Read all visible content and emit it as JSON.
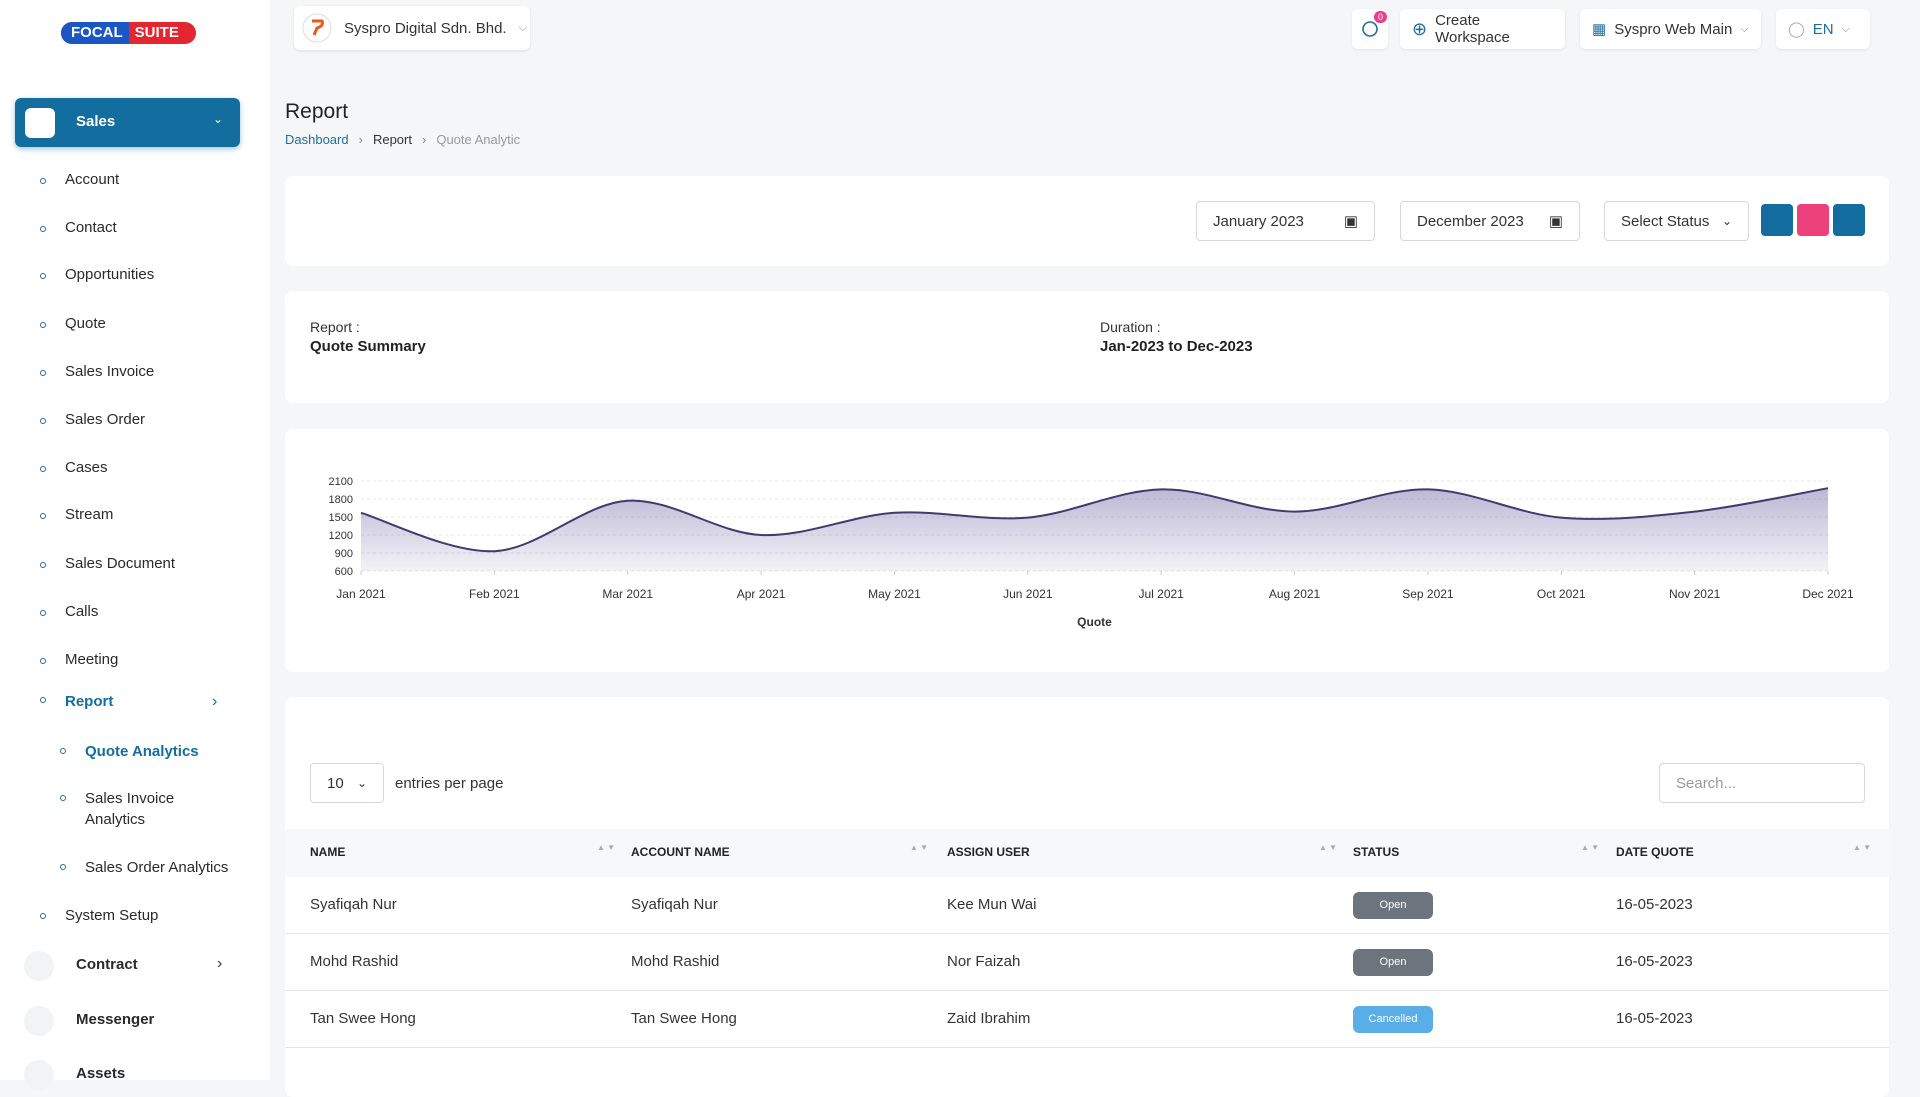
{
  "logo": {
    "left": "FOCAL",
    "right": "SUITE"
  },
  "header": {
    "company": "Syspro Digital Sdn. Bhd.",
    "notifications": "0",
    "create_workspace": "Create Workspace",
    "workspace": "Syspro Web Main",
    "language": "EN"
  },
  "sidebar": {
    "section": "Sales",
    "items": [
      "Account",
      "Contact",
      "Opportunities",
      "Quote",
      "Sales Invoice",
      "Sales Order",
      "Cases",
      "Stream",
      "Sales Document",
      "Calls",
      "Meeting"
    ],
    "report": "Report",
    "report_items": [
      "Quote Analytics",
      "Sales Invoice Analytics",
      "Sales Order Analytics"
    ],
    "system_setup": "System Setup",
    "modules": [
      "Contract",
      "Messenger",
      "Assets"
    ]
  },
  "page": {
    "title": "Report",
    "breadcrumb": [
      "Dashboard",
      "Report",
      "Quote Analytic"
    ]
  },
  "filters": {
    "from": "January 2023",
    "to": "December 2023",
    "status": "Select Status"
  },
  "summary": {
    "report_label": "Report :",
    "report_value": "Quote Summary",
    "duration_label": "Duration :",
    "duration_value": "Jan-2023 to Dec-2023"
  },
  "chart_data": {
    "type": "area",
    "x_label": "Quote",
    "categories": [
      "Jan 2021",
      "Feb 2021",
      "Mar 2021",
      "Apr 2021",
      "May 2021",
      "Jun 2021",
      "Jul 2021",
      "Aug 2021",
      "Sep 2021",
      "Oct 2021",
      "Nov 2021",
      "Dec 2021"
    ],
    "values": [
      1570,
      930,
      1770,
      1200,
      1570,
      1490,
      1960,
      1590,
      1960,
      1490,
      1590,
      1980
    ],
    "color": "#3f3b6e",
    "ylim": [
      600,
      2100
    ],
    "yticks": [
      600,
      900,
      1200,
      1500,
      1800,
      2100
    ],
    "grid": true
  },
  "table": {
    "page_size": "10",
    "entries_label": "entries per page",
    "search_placeholder": "Search...",
    "columns": [
      "NAME",
      "ACCOUNT NAME",
      "ASSIGN USER",
      "STATUS",
      "DATE QUOTE"
    ],
    "rows": [
      [
        "Syafiqah Nur",
        "Syafiqah Nur",
        "Kee Mun Wai",
        "Open",
        "16-05-2023"
      ],
      [
        "Mohd Rashid",
        "Mohd Rashid",
        "Nor Faizah",
        "Open",
        "16-05-2023"
      ],
      [
        "Tan Swee Hong",
        "Tan Swee Hong",
        "Zaid Ibrahim",
        "Cancelled",
        "16-05-2023"
      ]
    ]
  }
}
